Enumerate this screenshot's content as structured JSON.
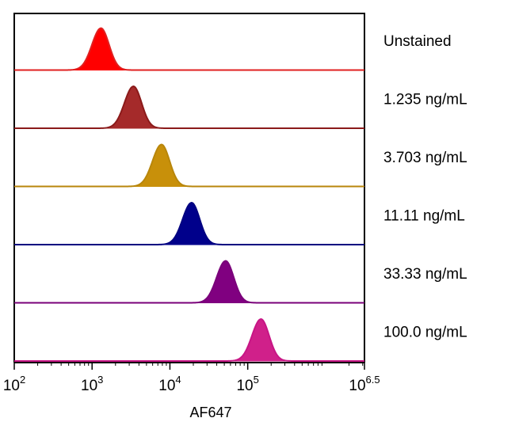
{
  "chart_data": {
    "type": "histogram",
    "x_scale": "log10",
    "xlim": [
      100,
      3162277.66
    ],
    "xlabel": "AF647",
    "x_ticks": [
      {
        "base": "10",
        "exp": "2",
        "value": 100
      },
      {
        "base": "10",
        "exp": "3",
        "value": 1000
      },
      {
        "base": "10",
        "exp": "4",
        "value": 10000
      },
      {
        "base": "10",
        "exp": "5",
        "value": 100000
      },
      {
        "base": "10",
        "exp": "6.5",
        "value": 3162277.66
      }
    ],
    "series": [
      {
        "name": "Unstained",
        "peak_x": 1300,
        "color": "#ff0000",
        "edge_color": "#e02020"
      },
      {
        "name": "1.235 ng/mL",
        "peak_x": 3400,
        "color": "#a52a2a",
        "edge_color": "#8b1a1a"
      },
      {
        "name": "3.703 ng/mL",
        "peak_x": 7800,
        "color": "#c8900a",
        "edge_color": "#b8860b"
      },
      {
        "name": "11.11 ng/mL",
        "peak_x": 19000,
        "color": "#00008b",
        "edge_color": "#000080"
      },
      {
        "name": "33.33 ng/mL",
        "peak_x": 52000,
        "color": "#800080",
        "edge_color": "#7a007a"
      },
      {
        "name": "100.0 ng/mL",
        "peak_x": 148000,
        "color": "#d0208a",
        "edge_color": "#c71585"
      }
    ]
  }
}
